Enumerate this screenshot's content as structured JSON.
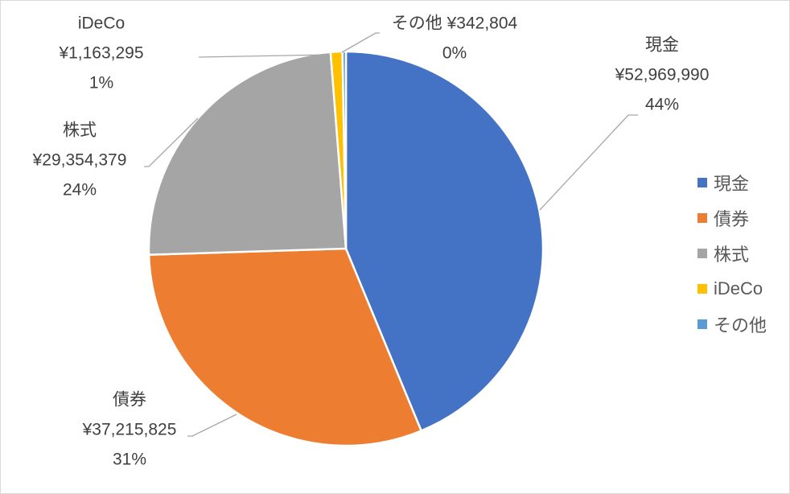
{
  "chart_data": {
    "type": "pie",
    "title": "",
    "legend": {
      "position": "right",
      "entries": [
        "現金",
        "債券",
        "株式",
        "iDeCo",
        "その他"
      ]
    },
    "slices": [
      {
        "category": "現金",
        "value": 52969990,
        "value_label": "¥52,969,990",
        "percent_label": "44%",
        "color": "#4472C4"
      },
      {
        "category": "債券",
        "value": 37215825,
        "value_label": "¥37,215,825",
        "percent_label": "31%",
        "color": "#ED7D31"
      },
      {
        "category": "株式",
        "value": 29354379,
        "value_label": "¥29,354,379",
        "percent_label": "24%",
        "color": "#A5A5A5"
      },
      {
        "category": "iDeCo",
        "value": 1163295,
        "value_label": "¥1,163,295",
        "percent_label": "1%",
        "color": "#FFC000"
      },
      {
        "category": "その他",
        "value": 342804,
        "value_label": "¥342,804",
        "percent_label": "0%",
        "color": "#5B9BD5"
      }
    ]
  }
}
